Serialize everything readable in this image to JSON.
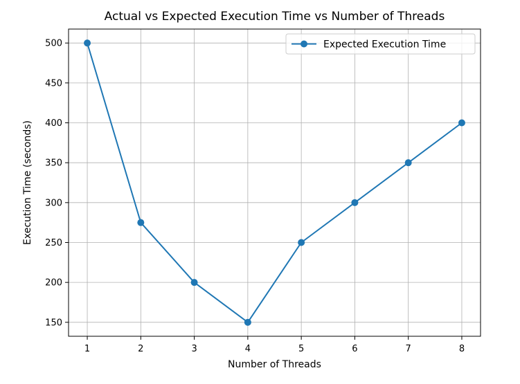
{
  "chart_data": {
    "type": "line",
    "title": "Actual vs Expected Execution Time vs Number of Threads",
    "xlabel": "Number of Threads",
    "ylabel": "Execution Time (seconds)",
    "x": [
      1,
      2,
      3,
      4,
      5,
      6,
      7,
      8
    ],
    "xticks": [
      1,
      2,
      3,
      4,
      5,
      6,
      7,
      8
    ],
    "yticks": [
      150,
      200,
      250,
      300,
      350,
      400,
      450,
      500
    ],
    "xlim": [
      0.65,
      8.35
    ],
    "ylim": [
      132.5,
      517.5
    ],
    "grid": true,
    "legend_position": "top-right",
    "series": [
      {
        "name": "Expected Execution Time",
        "values": [
          500,
          275,
          200,
          150,
          250,
          300,
          350,
          400
        ],
        "color": "#1f77b4",
        "marker": "circle"
      }
    ]
  }
}
